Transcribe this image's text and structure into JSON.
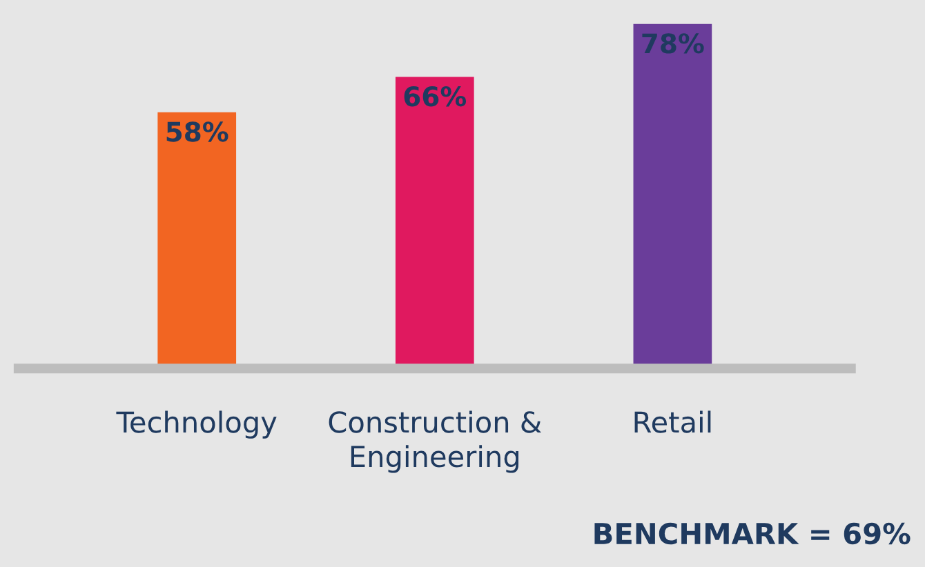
{
  "chart_data": {
    "type": "bar",
    "categories": [
      "Technology",
      "Construction &\nEngineering",
      "Retail"
    ],
    "values": [
      58,
      66,
      78
    ],
    "colors": [
      "#f26522",
      "#e0195f",
      "#6a3d9a"
    ],
    "value_labels": [
      "58%",
      "66%",
      "78%"
    ],
    "grid": false,
    "legend": false,
    "tick_labels": "x",
    "annotations": [
      "BENCHMARK = 69%"
    ]
  }
}
